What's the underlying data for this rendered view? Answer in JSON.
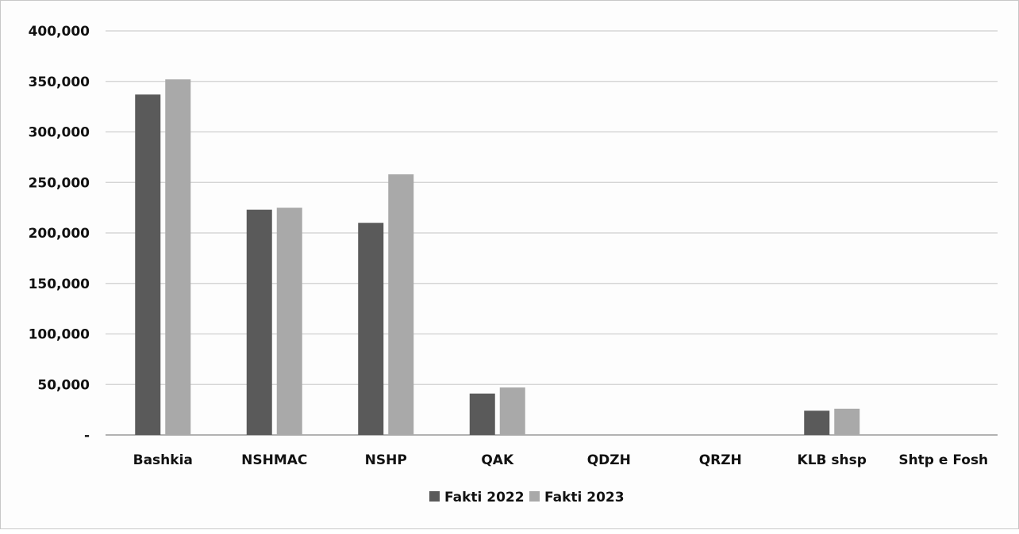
{
  "chart_data": {
    "type": "bar",
    "title": "",
    "xlabel": "",
    "ylabel": "",
    "categories": [
      "Bashkia",
      "NSHMAC",
      "NSHP",
      "QAK",
      "QDZH",
      "QRZH",
      "KLB shsp",
      "Shtp e Fosh"
    ],
    "series": [
      {
        "name": "Fakti 2022",
        "color": "#5a5a5a",
        "values": [
          337000,
          223000,
          210000,
          41000,
          0,
          0,
          24000,
          0
        ]
      },
      {
        "name": "Fakti 2023",
        "color": "#a9a9a9",
        "values": [
          352000,
          225000,
          258000,
          47000,
          0,
          0,
          26000,
          0
        ]
      }
    ],
    "ylim": [
      0,
      400000
    ],
    "yticks": [
      0,
      50000,
      100000,
      150000,
      200000,
      250000,
      300000,
      350000,
      400000
    ],
    "ytick_labels": [
      "-",
      "50,000",
      "100,000",
      "150,000",
      "200,000",
      "250,000",
      "300,000",
      "350,000",
      "400,000"
    ],
    "grid": true,
    "legend_position": "bottom"
  }
}
